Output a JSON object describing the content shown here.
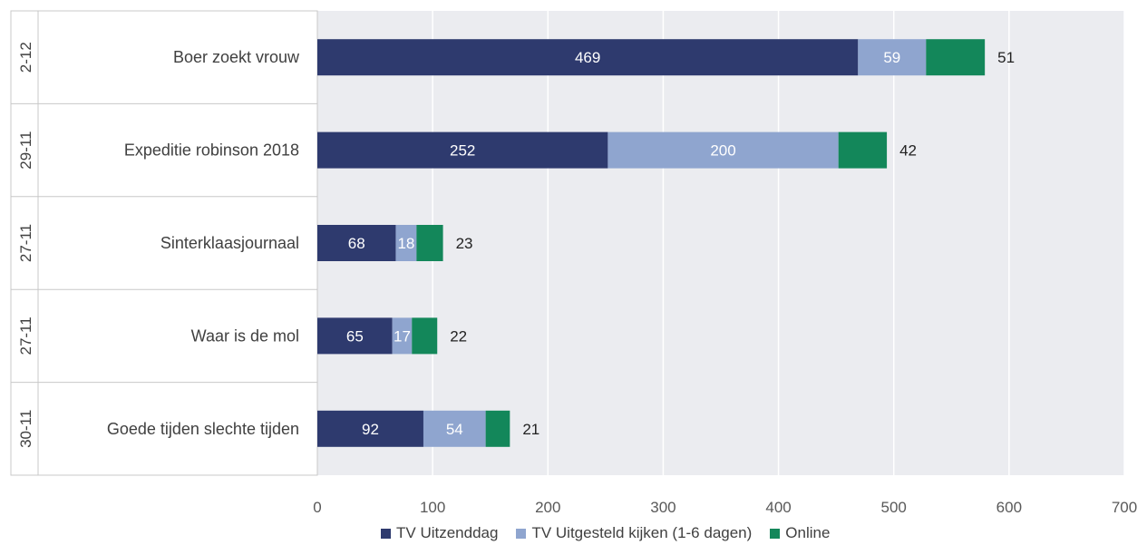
{
  "chart_data": {
    "type": "bar",
    "orientation": "horizontal",
    "stacked": true,
    "date_labels": [
      "2-12",
      "29-11",
      "27-11",
      "27-11",
      "30-11"
    ],
    "categories": [
      "Boer zoekt vrouw",
      "Expeditie robinson 2018",
      "Sinterklaasjournaal",
      "Waar is de mol",
      "Goede tijden slechte tijden"
    ],
    "series": [
      {
        "name": "TV Uitzenddag",
        "color": "#2e3a6e",
        "values": [
          469,
          252,
          68,
          65,
          92
        ]
      },
      {
        "name": "TV Uitgesteld kijken (1-6 dagen)",
        "color": "#8fa5cf",
        "values": [
          59,
          200,
          18,
          17,
          54
        ]
      },
      {
        "name": "Online",
        "color": "#13875a",
        "values": [
          51,
          42,
          23,
          22,
          21
        ]
      }
    ],
    "xlim": [
      0,
      700
    ],
    "xticks": [
      0,
      100,
      200,
      300,
      400,
      500,
      600,
      700
    ],
    "grid": true,
    "legend_position": "bottom",
    "plot_background": "#ebecf0"
  }
}
